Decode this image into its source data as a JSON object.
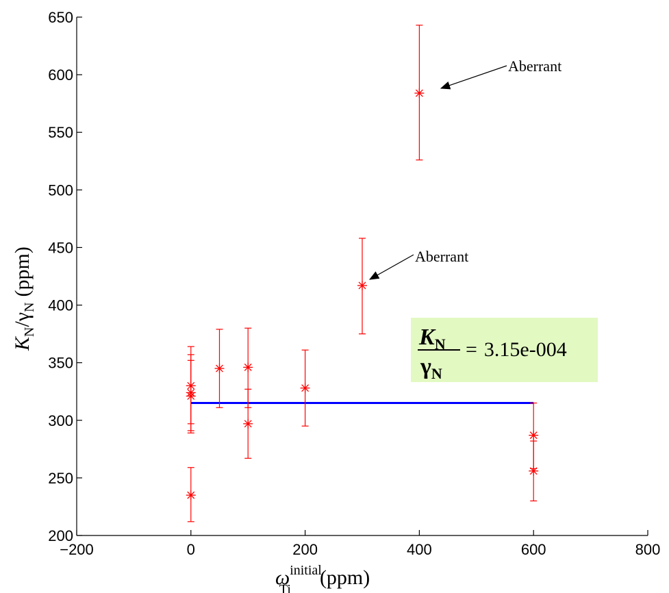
{
  "chart_data": {
    "type": "scatter",
    "xlabel": {
      "symbol": "ω",
      "superscript": "initial",
      "subscript": "Ti",
      "unit": "(ppm)"
    },
    "ylabel": {
      "symbol": "K",
      "sub1": "N",
      "slash": "/",
      "gamma": "γ",
      "sub2": "N",
      "unit": "(ppm)"
    },
    "xlim": [
      -200,
      800
    ],
    "ylim": [
      200,
      650
    ],
    "xticks": [
      -200,
      0,
      200,
      400,
      600,
      800
    ],
    "xtick_labels": [
      "−200",
      "0",
      "200",
      "400",
      "600",
      "800"
    ],
    "yticks": [
      200,
      250,
      300,
      350,
      400,
      450,
      500,
      550,
      600,
      650
    ],
    "ytick_labels": [
      "200",
      "250",
      "300",
      "350",
      "400",
      "450",
      "500",
      "550",
      "600",
      "650"
    ],
    "grid": false,
    "series": [
      {
        "marker": "asterisk",
        "color": "#ff0000",
        "points": [
          {
            "x": 0,
            "y": 330,
            "ylow": 297,
            "yhigh": 364
          },
          {
            "x": 0,
            "y": 324,
            "ylow": 291,
            "yhigh": 357
          },
          {
            "x": 0,
            "y": 321,
            "ylow": 289,
            "yhigh": 352
          },
          {
            "x": 0,
            "y": 235,
            "ylow": 212,
            "yhigh": 259
          },
          {
            "x": 50,
            "y": 345,
            "ylow": 311,
            "yhigh": 379
          },
          {
            "x": 100,
            "y": 346,
            "ylow": 311,
            "yhigh": 380
          },
          {
            "x": 100,
            "y": 297,
            "ylow": 267,
            "yhigh": 327
          },
          {
            "x": 200,
            "y": 328,
            "ylow": 295,
            "yhigh": 361
          },
          {
            "x": 300,
            "y": 417,
            "ylow": 375,
            "yhigh": 458
          },
          {
            "x": 400,
            "y": 584,
            "ylow": 526,
            "yhigh": 643
          },
          {
            "x": 600,
            "y": 287,
            "ylow": 258,
            "yhigh": 315
          },
          {
            "x": 600,
            "y": 256,
            "ylow": 230,
            "yhigh": 282
          }
        ]
      }
    ],
    "fit_line": {
      "x": [
        0,
        600
      ],
      "y": [
        315,
        315
      ],
      "color": "#0000ff"
    },
    "annotations": [
      {
        "text": "Aberrant",
        "point_x": 300,
        "point_y": 417
      },
      {
        "text": "Aberrant",
        "point_x": 400,
        "point_y": 584
      }
    ],
    "result_box": {
      "numerator": "K",
      "numerator_sub": "N",
      "denominator": "γ",
      "denominator_sub": "N",
      "equals": "=",
      "value": "3.15e-004",
      "background": "#e2f9c2"
    }
  }
}
